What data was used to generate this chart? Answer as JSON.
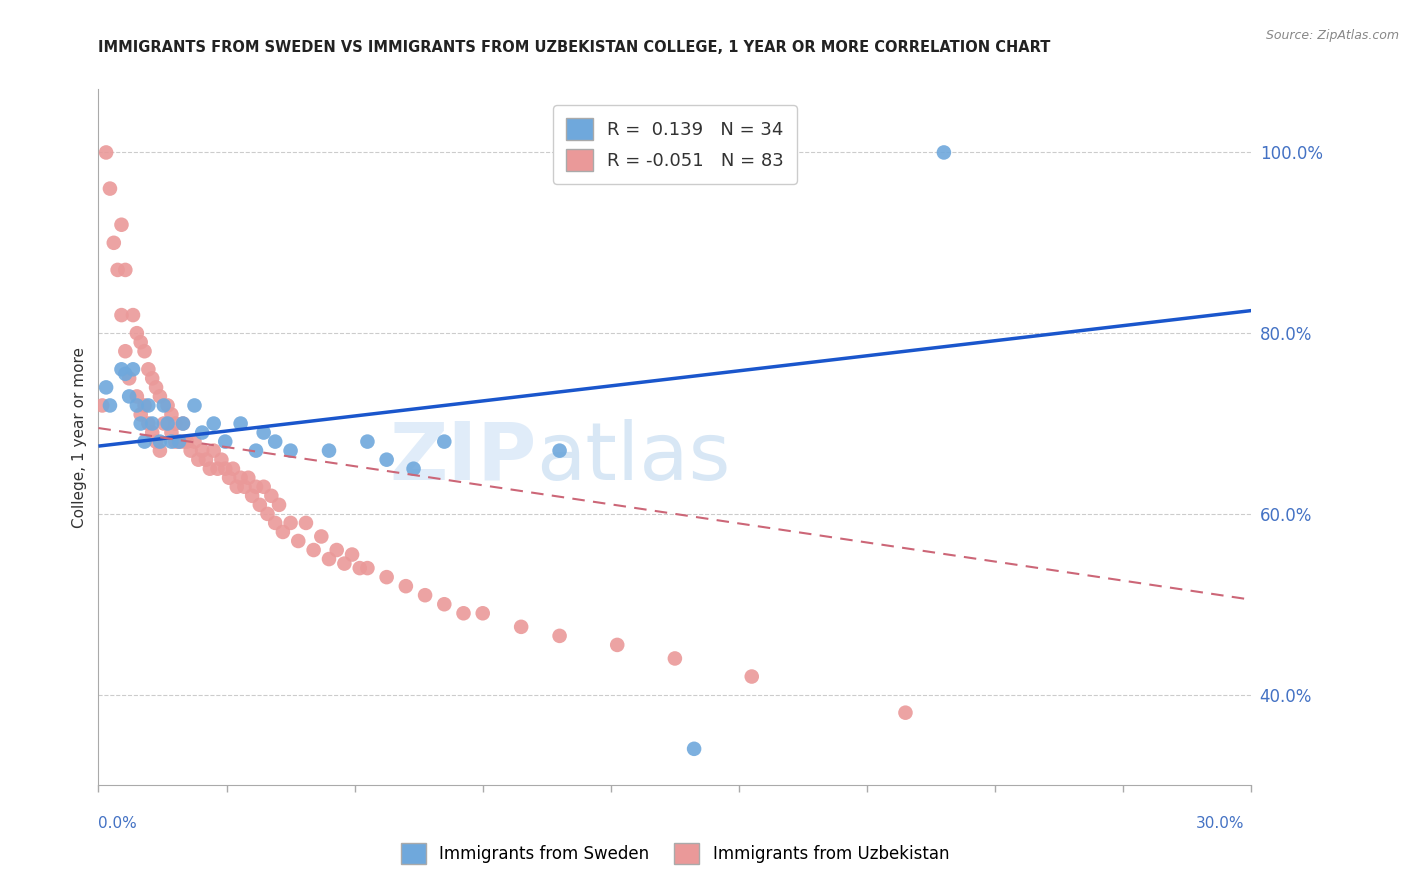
{
  "title": "IMMIGRANTS FROM SWEDEN VS IMMIGRANTS FROM UZBEKISTAN COLLEGE, 1 YEAR OR MORE CORRELATION CHART",
  "source": "Source: ZipAtlas.com",
  "ylabel": "College, 1 year or more",
  "yticks": [
    0.4,
    0.6,
    0.8,
    1.0
  ],
  "ytick_labels": [
    "40.0%",
    "60.0%",
    "80.0%",
    "100.0%"
  ],
  "xmin": 0.0,
  "xmax": 0.3,
  "ymin": 0.3,
  "ymax": 1.07,
  "sweden_color": "#6fa8dc",
  "uzbekistan_color": "#ea9999",
  "sweden_line_color": "#1a56cc",
  "uzbekistan_line_color": "#cc6677",
  "sweden_R": 0.139,
  "sweden_N": 34,
  "uzbekistan_R": -0.051,
  "uzbekistan_N": 83,
  "sweden_line_x0": 0.0,
  "sweden_line_y0": 0.675,
  "sweden_line_x1": 0.3,
  "sweden_line_y1": 0.825,
  "uzbekistan_line_x0": 0.0,
  "uzbekistan_line_y0": 0.695,
  "uzbekistan_line_x1": 0.3,
  "uzbekistan_line_y1": 0.505,
  "sweden_points_x": [
    0.002,
    0.003,
    0.006,
    0.007,
    0.008,
    0.009,
    0.01,
    0.011,
    0.012,
    0.013,
    0.014,
    0.016,
    0.017,
    0.018,
    0.019,
    0.021,
    0.022,
    0.025,
    0.027,
    0.03,
    0.033,
    0.037,
    0.041,
    0.043,
    0.046,
    0.05,
    0.06,
    0.07,
    0.075,
    0.082,
    0.09,
    0.12,
    0.155,
    0.22
  ],
  "sweden_points_y": [
    0.74,
    0.72,
    0.76,
    0.755,
    0.73,
    0.76,
    0.72,
    0.7,
    0.68,
    0.72,
    0.7,
    0.68,
    0.72,
    0.7,
    0.68,
    0.68,
    0.7,
    0.72,
    0.69,
    0.7,
    0.68,
    0.7,
    0.67,
    0.69,
    0.68,
    0.67,
    0.67,
    0.68,
    0.66,
    0.65,
    0.68,
    0.67,
    0.34,
    1.0
  ],
  "uzbekistan_points_x": [
    0.001,
    0.002,
    0.003,
    0.004,
    0.005,
    0.006,
    0.006,
    0.007,
    0.007,
    0.008,
    0.009,
    0.01,
    0.01,
    0.011,
    0.011,
    0.012,
    0.012,
    0.013,
    0.013,
    0.014,
    0.014,
    0.015,
    0.015,
    0.016,
    0.016,
    0.017,
    0.018,
    0.019,
    0.019,
    0.02,
    0.02,
    0.021,
    0.022,
    0.022,
    0.023,
    0.024,
    0.025,
    0.026,
    0.027,
    0.028,
    0.029,
    0.03,
    0.031,
    0.032,
    0.033,
    0.034,
    0.035,
    0.036,
    0.037,
    0.038,
    0.039,
    0.04,
    0.041,
    0.042,
    0.043,
    0.044,
    0.045,
    0.046,
    0.047,
    0.048,
    0.05,
    0.052,
    0.054,
    0.056,
    0.058,
    0.06,
    0.062,
    0.064,
    0.066,
    0.068,
    0.07,
    0.075,
    0.08,
    0.085,
    0.09,
    0.095,
    0.1,
    0.11,
    0.12,
    0.135,
    0.15,
    0.17,
    0.21
  ],
  "uzbekistan_points_y": [
    0.72,
    1.0,
    0.96,
    0.9,
    0.87,
    0.82,
    0.92,
    0.78,
    0.87,
    0.75,
    0.82,
    0.73,
    0.8,
    0.71,
    0.79,
    0.72,
    0.78,
    0.7,
    0.76,
    0.69,
    0.75,
    0.68,
    0.74,
    0.67,
    0.73,
    0.7,
    0.72,
    0.69,
    0.71,
    0.68,
    0.7,
    0.68,
    0.7,
    0.68,
    0.68,
    0.67,
    0.68,
    0.66,
    0.67,
    0.66,
    0.65,
    0.67,
    0.65,
    0.66,
    0.65,
    0.64,
    0.65,
    0.63,
    0.64,
    0.63,
    0.64,
    0.62,
    0.63,
    0.61,
    0.63,
    0.6,
    0.62,
    0.59,
    0.61,
    0.58,
    0.59,
    0.57,
    0.59,
    0.56,
    0.575,
    0.55,
    0.56,
    0.545,
    0.555,
    0.54,
    0.54,
    0.53,
    0.52,
    0.51,
    0.5,
    0.49,
    0.49,
    0.475,
    0.465,
    0.455,
    0.44,
    0.42,
    0.38
  ]
}
